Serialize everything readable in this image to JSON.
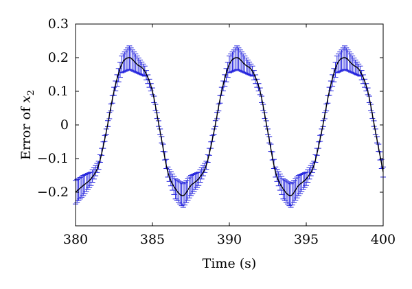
{
  "chart_data": {
    "type": "line",
    "title": "",
    "xlabel": "Time (s)",
    "ylabel": {
      "prefix": "Error of ",
      "symbol": "x",
      "subscript": "2"
    },
    "xlim": [
      380,
      400
    ],
    "ylim": [
      -0.3,
      0.3
    ],
    "xticks": [
      380,
      385,
      390,
      395,
      400
    ],
    "xtick_labels": [
      "380",
      "385",
      "390",
      "395",
      "400"
    ],
    "yticks": [
      -0.2,
      -0.1,
      0,
      0.1,
      0.2,
      0.3
    ],
    "ytick_labels": [
      "−0.2",
      "−0.1",
      "0",
      "0.1",
      "0.2",
      "0.3"
    ],
    "grid": false,
    "period": 6.8,
    "mean_series": {
      "x": [
        380.0,
        380.5,
        381.0,
        381.5,
        382.0,
        382.5,
        383.0,
        383.5,
        384.0,
        384.5,
        385.0,
        385.5,
        386.0,
        386.5,
        387.0,
        387.5,
        388.0,
        388.5,
        389.0,
        389.5,
        390.0,
        390.5,
        391.0,
        391.5,
        392.0,
        392.5,
        393.0,
        393.5,
        394.0,
        394.5,
        395.0,
        395.5,
        396.0,
        396.5,
        397.0,
        397.5,
        398.0,
        398.5,
        399.0,
        399.5,
        400.0
      ],
      "y": [
        -0.2,
        -0.18,
        -0.16,
        -0.12,
        -0.02,
        0.1,
        0.18,
        0.2,
        0.18,
        0.16,
        0.1,
        -0.02,
        -0.14,
        -0.19,
        -0.21,
        -0.18,
        -0.16,
        -0.12,
        -0.02,
        0.1,
        0.18,
        0.2,
        0.18,
        0.16,
        0.1,
        -0.02,
        -0.14,
        -0.19,
        -0.21,
        -0.18,
        -0.16,
        -0.12,
        -0.02,
        0.1,
        0.18,
        0.2,
        0.18,
        0.16,
        0.1,
        -0.02,
        -0.14
      ]
    },
    "error_half_width": {
      "x": [
        380.0,
        380.5,
        381.0,
        381.5,
        382.0,
        382.5,
        383.0,
        383.5,
        384.0,
        384.5,
        385.0,
        385.5,
        386.0,
        386.5,
        387.0,
        387.5,
        388.0,
        388.5,
        389.0,
        389.5,
        390.0,
        390.5,
        391.0,
        391.5,
        392.0,
        392.5,
        393.0,
        393.5,
        394.0,
        394.5,
        395.0,
        395.5,
        396.0,
        396.5,
        397.0,
        397.5,
        398.0,
        398.5,
        399.0,
        399.5,
        400.0
      ],
      "value": [
        0.035,
        0.03,
        0.02,
        0.012,
        0.008,
        0.012,
        0.025,
        0.035,
        0.025,
        0.015,
        0.01,
        0.008,
        0.015,
        0.03,
        0.035,
        0.03,
        0.02,
        0.012,
        0.008,
        0.012,
        0.025,
        0.035,
        0.025,
        0.015,
        0.01,
        0.008,
        0.015,
        0.03,
        0.035,
        0.03,
        0.02,
        0.012,
        0.008,
        0.012,
        0.025,
        0.035,
        0.025,
        0.015,
        0.01,
        0.008,
        0.015
      ]
    },
    "colors": {
      "mean_line": "#000000",
      "error_bars": "#2222dd",
      "axes": "#000000",
      "background": "#ffffff"
    }
  }
}
